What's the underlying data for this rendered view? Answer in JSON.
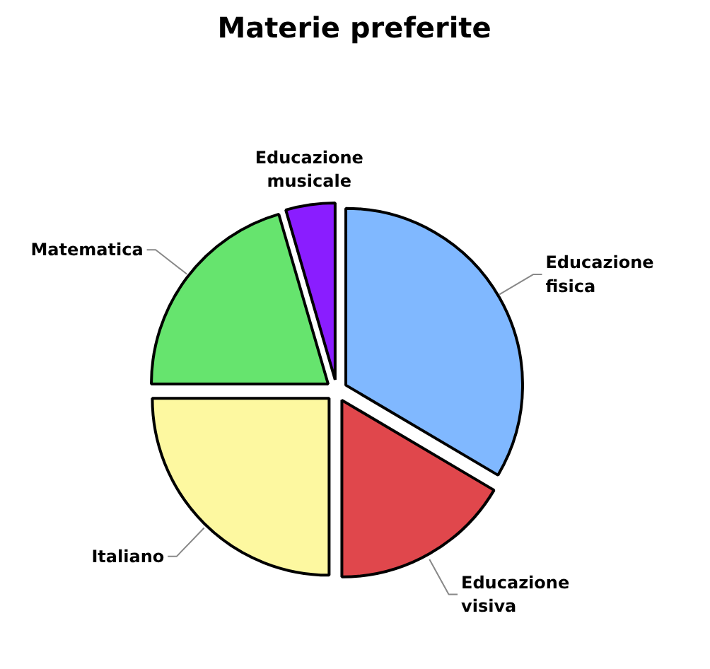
{
  "chart_data": {
    "type": "pie",
    "title": "Materie preferite",
    "categories": [
      "Educazione fisica",
      "Educazione visiva",
      "Italiano",
      "Matematica",
      "Educazione musicale"
    ],
    "values": [
      33.5,
      16.5,
      25,
      20.5,
      4.5
    ],
    "colors": [
      "#80b8ff",
      "#e0474c",
      "#fdf8a0",
      "#66e46e",
      "#8a1dff"
    ]
  }
}
